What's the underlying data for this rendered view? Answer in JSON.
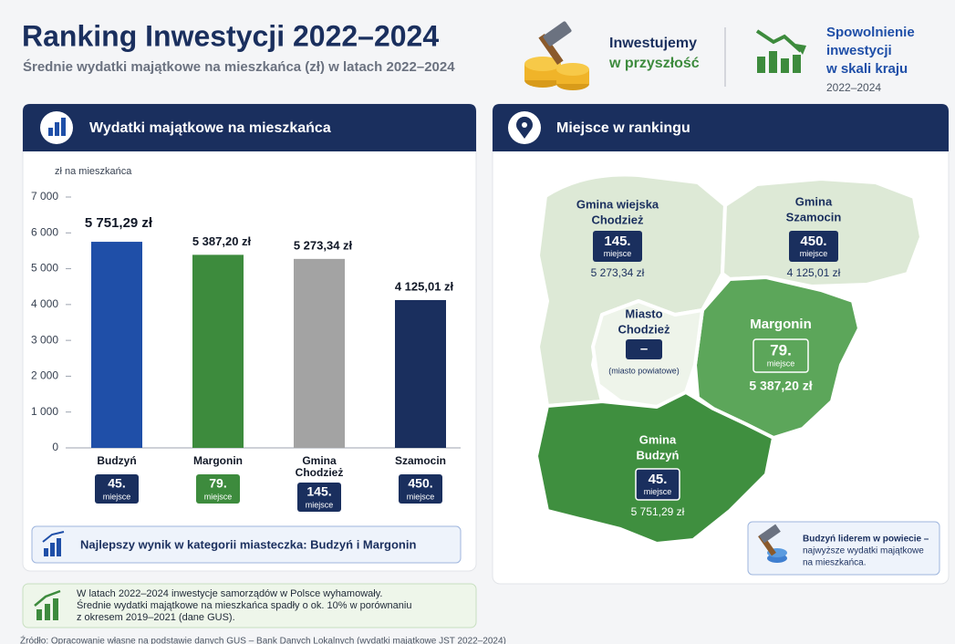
{
  "header": {
    "title": "Ranking Inwestycji 2022–2024",
    "subtitle": "Średnie wydatki majątkowe na mieszkańca (zł) w latach 2022–2024"
  },
  "highlights": [
    {
      "lines": [
        "Inwestujemy",
        "w przyszłość"
      ]
    },
    {
      "lines": [
        "Spowolnienie",
        "inwestycji",
        "w skali kraju"
      ],
      "period": "2022–2024"
    }
  ],
  "chart_data": {
    "type": "bar",
    "title": "Wydatki majątkowe na mieszkańca",
    "y_label": "zł na mieszkańca",
    "categories": [
      [
        "Budzyń"
      ],
      [
        "Margonin"
      ],
      [
        "Gmina",
        "Chodzież"
      ],
      [
        "Szamocin"
      ]
    ],
    "values": [
      5751.29,
      5387.2,
      5273.34,
      4125.01
    ],
    "value_labels": [
      "5 751,29 zł",
      "5 387,20 zł",
      "5 273,34 zł",
      "4 125,01 zł"
    ],
    "colors": [
      "#1f4fa8",
      "#3d8b3d",
      "#a3a3a3",
      "#1a2f5e"
    ],
    "ranks": [
      "45.",
      "79.",
      "145.",
      "450."
    ],
    "rank_label": "miejsce",
    "rank_colors": [
      "#1a2f5e",
      "#3d8b3d",
      "#1a2f5e",
      "#1a2f5e"
    ],
    "ylim": [
      0,
      7000
    ],
    "yticks": [
      0,
      {
        "value": 1000,
        "label": "1 000"
      },
      {
        "value": 2000,
        "label": "2 000"
      },
      {
        "value": 3000,
        "label": "3 000"
      },
      {
        "value": 4000,
        "label": "4 000"
      },
      {
        "value": 5000,
        "label": "5 000"
      },
      {
        "value": 6000,
        "label": "6 000"
      },
      {
        "value": 7000,
        "label": "7 000"
      }
    ],
    "note": "Najlepszy wynik w kategorii miasteczka: Budzyń i Margonin"
  },
  "map": {
    "title": "Miejsce w rankingu",
    "regions": [
      {
        "name": [
          "Gmina wiejska",
          "Chodzież"
        ],
        "rank": "145.",
        "rank_label": "miejsce",
        "value": "5 273,34 zł"
      },
      {
        "name": [
          "Gmina",
          "Szamocin"
        ],
        "rank": "450.",
        "rank_label": "miejsce",
        "value": "4 125,01 zł"
      },
      {
        "name": [
          "Margonin"
        ],
        "rank": "79.",
        "rank_label": "miejsce",
        "value": "5 387,20 zł"
      },
      {
        "name": [
          "Miasto",
          "Chodzież"
        ],
        "rank": "–",
        "note": "(miasto powiatowe)"
      },
      {
        "name": [
          "Gmina",
          "Budzyń"
        ],
        "rank": "45.",
        "rank_label": "miejsce",
        "value": "5 751,29 zł"
      }
    ],
    "legend": [
      "Budzyń liderem w powiecie –",
      "najwyższe wydatki majątkowe",
      "na mieszkańca."
    ]
  },
  "footer": {
    "note": [
      "W latach 2022–2024 inwestycje samorządów w Polsce wyhamowały.",
      "Średnie wydatki majątkowe na mieszkańca spadły o ok. 10% w porównaniu",
      "z okresem 2019–2021 (dane GUS)."
    ],
    "source": "Źródło: Opracowanie własne na podstawie danych GUS – Bank Danych Lokalnych (wydatki majątkowe JST 2022–2024)"
  }
}
